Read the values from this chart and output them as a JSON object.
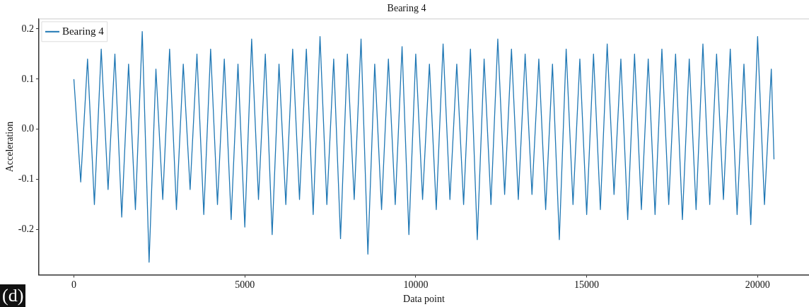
{
  "chart_data": {
    "type": "line",
    "title": "Bearing 4",
    "xlabel": "Data point",
    "ylabel": "Acceleration",
    "annotations": [
      "(d)"
    ],
    "xlim": [
      -1024,
      21503
    ],
    "xticks": [
      0,
      5000,
      10000,
      15000,
      20000
    ],
    "ylim": [
      -0.29,
      0.22
    ],
    "yticks": [
      {
        "value": -0.2,
        "label": "-0.2"
      },
      {
        "value": -0.1,
        "label": "-0.1"
      },
      {
        "value": 0,
        "label": "0.0"
      },
      {
        "value": 0.1,
        "label": "0.1"
      },
      {
        "value": 0.2,
        "label": "0.2"
      }
    ],
    "grid": false,
    "legend": "top left",
    "marker": "none",
    "line_style": "solid",
    "series": [
      {
        "name": "Bearing 4",
        "color": "#1f77b4",
        "x": [
          0,
          200,
          400,
          600,
          800,
          1000,
          1200,
          1400,
          1600,
          1800,
          2000,
          2200,
          2400,
          2600,
          2800,
          3000,
          3200,
          3400,
          3600,
          3800,
          4000,
          4200,
          4400,
          4600,
          4800,
          5000,
          5200,
          5400,
          5600,
          5800,
          6000,
          6200,
          6400,
          6600,
          6800,
          7000,
          7200,
          7400,
          7600,
          7800,
          8000,
          8200,
          8400,
          8600,
          8800,
          9000,
          9200,
          9400,
          9600,
          9800,
          10000,
          10200,
          10400,
          10600,
          10800,
          11000,
          11200,
          11400,
          11600,
          11800,
          12000,
          12200,
          12400,
          12600,
          12800,
          13000,
          13200,
          13400,
          13600,
          13800,
          14000,
          14200,
          14400,
          14600,
          14800,
          15000,
          15200,
          15400,
          15600,
          15800,
          16000,
          16200,
          16400,
          16600,
          16800,
          17000,
          17200,
          17400,
          17600,
          17800,
          18000,
          18200,
          18400,
          18600,
          18800,
          19000,
          19200,
          19400,
          19600,
          19800,
          20000,
          20200,
          20400,
          20479
        ],
        "values": [
          0.1,
          -0.105,
          0.14,
          -0.15,
          0.16,
          -0.12,
          0.15,
          -0.175,
          0.13,
          -0.16,
          0.195,
          -0.265,
          0.12,
          -0.14,
          0.16,
          -0.16,
          0.13,
          -0.12,
          0.15,
          -0.17,
          0.16,
          -0.15,
          0.14,
          -0.18,
          0.13,
          -0.195,
          0.18,
          -0.14,
          0.15,
          -0.21,
          0.13,
          -0.15,
          0.16,
          -0.14,
          0.16,
          -0.17,
          0.185,
          -0.15,
          0.14,
          -0.218,
          0.15,
          -0.14,
          0.18,
          -0.249,
          0.13,
          -0.16,
          0.14,
          -0.15,
          0.165,
          -0.21,
          0.15,
          -0.14,
          0.13,
          -0.16,
          0.17,
          -0.14,
          0.13,
          -0.15,
          0.16,
          -0.22,
          0.14,
          -0.15,
          0.18,
          -0.13,
          0.16,
          -0.14,
          0.15,
          -0.13,
          0.14,
          -0.16,
          0.13,
          -0.22,
          0.16,
          -0.15,
          0.14,
          -0.17,
          0.15,
          -0.16,
          0.17,
          -0.13,
          0.14,
          -0.18,
          0.15,
          -0.16,
          0.14,
          -0.17,
          0.16,
          -0.15,
          0.15,
          -0.18,
          0.14,
          -0.16,
          0.17,
          -0.15,
          0.15,
          -0.14,
          0.16,
          -0.17,
          0.13,
          -0.19,
          0.185,
          -0.15,
          0.12,
          -0.06
        ]
      }
    ]
  }
}
